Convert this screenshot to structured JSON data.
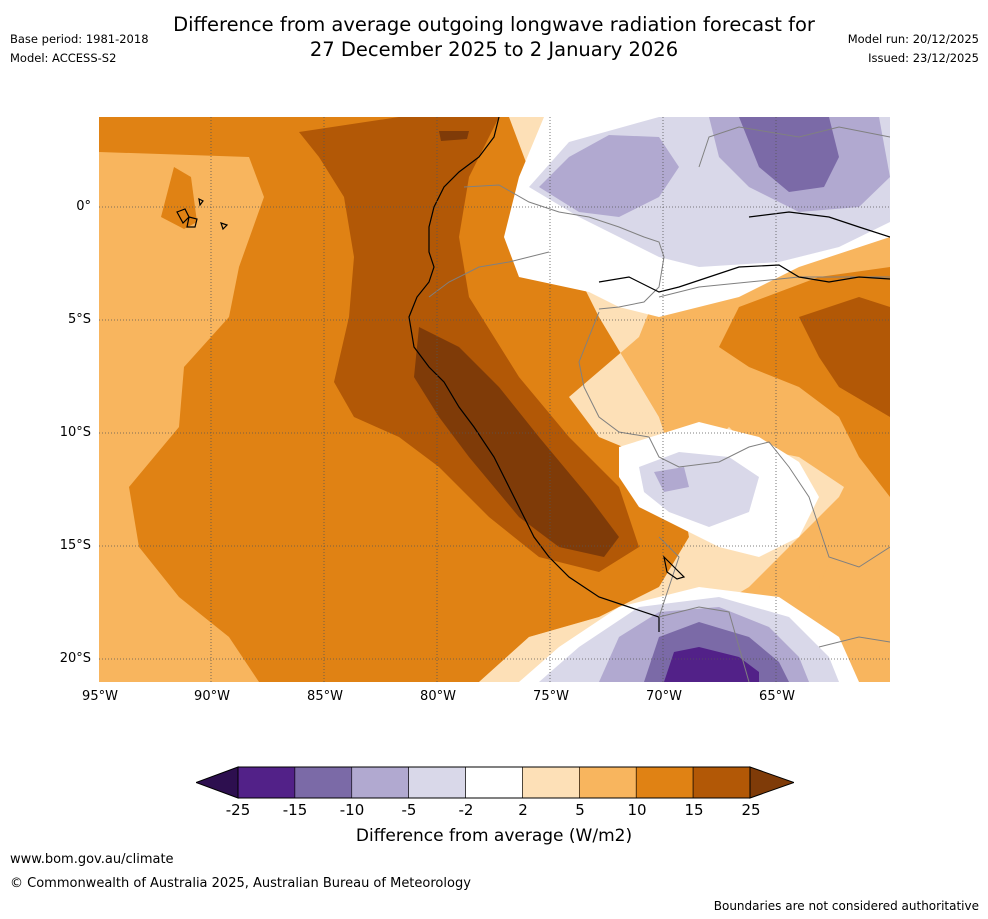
{
  "header": {
    "title_line1": "Difference from average outgoing longwave radiation forecast for",
    "title_line2": "27 December 2025 to 2 January 2026",
    "base_period": "Base period: 1981-2018",
    "model": "Model: ACCESS-S2",
    "model_run": "Model run: 20/12/2025",
    "issued": "Issued: 23/12/2025"
  },
  "map": {
    "lat_labels": [
      "0°",
      "5°S",
      "10°S",
      "15°S",
      "20°S"
    ],
    "lon_labels": [
      "95°W",
      "90°W",
      "85°W",
      "80°W",
      "75°W",
      "70°W",
      "65°W"
    ]
  },
  "colorbar": {
    "ticks": [
      "-25",
      "-15",
      "-10",
      "-5",
      "-2",
      "2",
      "5",
      "10",
      "15",
      "25"
    ],
    "label": "Difference from average (W/m2)",
    "colors": [
      "#2d0f4f",
      "#522188",
      "#7b6aa7",
      "#b1a9d0",
      "#d9d8e9",
      "#ffffff",
      "#fde0b7",
      "#f8b55e",
      "#e08214",
      "#b25806",
      "#7f3b08"
    ]
  },
  "footer": {
    "url": "www.bom.gov.au/climate",
    "copyright": "© Commonwealth of Australia 2025, Australian Bureau of Meteorology",
    "disclaimer": "Boundaries are not considered authoritative"
  }
}
